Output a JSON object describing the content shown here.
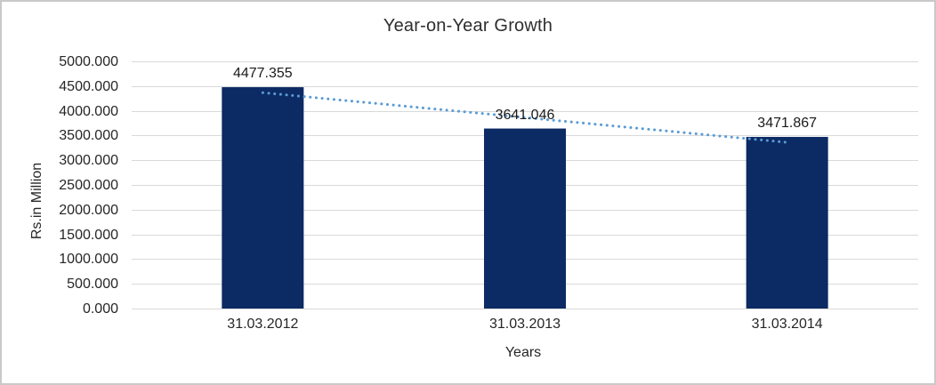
{
  "figure": {
    "title": "Year-on-Year Growth",
    "y_axis_title": "Rs.in Million",
    "x_axis_title": "Years"
  },
  "chart_data": {
    "type": "bar",
    "title": "Year-on-Year Growth",
    "xlabel": "Years",
    "ylabel": "Rs.in Million",
    "categories": [
      "31.03.2012",
      "31.03.2013",
      "31.03.2014"
    ],
    "values": [
      4477.355,
      3641.046,
      3471.867
    ],
    "data_labels": [
      "4477.355",
      "3641.046",
      "3471.867"
    ],
    "ylim": [
      0,
      5000
    ],
    "y_tick_step": 500,
    "y_tick_labels": [
      "5000.000",
      "4500.000",
      "4000.000",
      "3500.000",
      "3000.000",
      "2500.000",
      "2000.000",
      "1500.000",
      "1000.000",
      "500.000",
      "0.000"
    ],
    "grid": true,
    "legend": "none",
    "trendline": {
      "type": "linear",
      "style": "dotted",
      "values": [
        4366.17,
        3863.42,
        3360.68
      ]
    },
    "colors": {
      "bar": "#0c2a63",
      "trendline": "#5b9bd5",
      "gridline": "#d9d9d9",
      "axis_line": "#d9d9d9",
      "title_text": "#2e2e2e",
      "label_text": "#1a1a1a",
      "border": "#c9c9c9"
    }
  }
}
